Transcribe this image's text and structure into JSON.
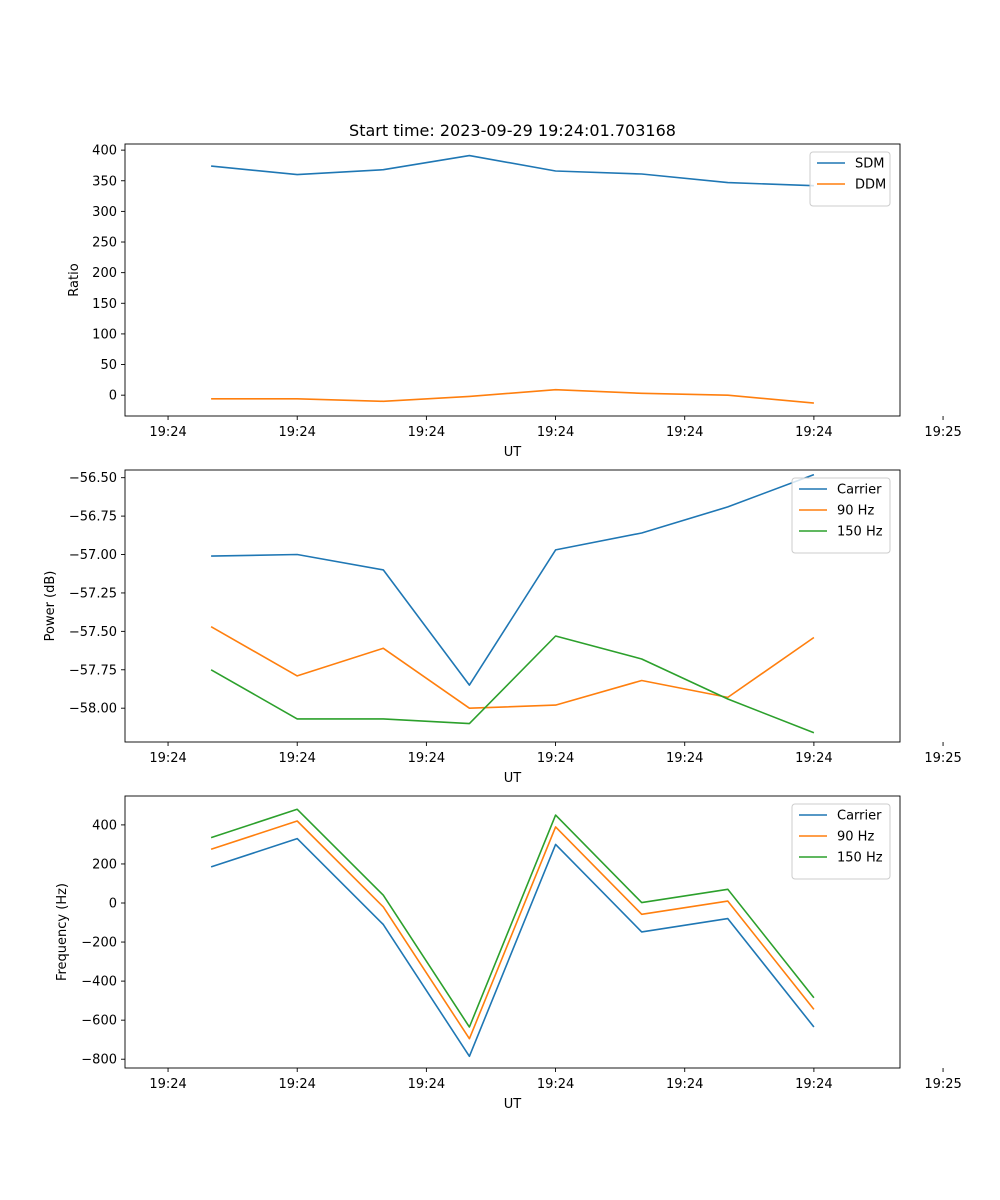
{
  "chart_data": [
    {
      "type": "line",
      "title": "Start time: 2023-09-29 19:24:01.703168",
      "xlabel": "UT",
      "ylabel": "Ratio",
      "xlim": [
        0,
        9
      ],
      "ylim": [
        -34,
        410
      ],
      "xticks": [
        0.5,
        2,
        3.5,
        5,
        6.5,
        8,
        9.5
      ],
      "xtick_labels": [
        "19:24",
        "19:24",
        "19:24",
        "19:24",
        "19:24",
        "19:24",
        "19:25"
      ],
      "yticks": [
        0,
        50,
        100,
        150,
        200,
        250,
        300,
        350,
        400
      ],
      "ytick_labels": [
        "0",
        "50",
        "100",
        "150",
        "200",
        "250",
        "300",
        "350",
        "400"
      ],
      "x": [
        1,
        2,
        3,
        4,
        5,
        6,
        7,
        8
      ],
      "legend": "top-right",
      "series": [
        {
          "name": "SDM",
          "color": "#1f77b4",
          "values": [
            374,
            360,
            368,
            391,
            366,
            361,
            347,
            342
          ]
        },
        {
          "name": "DDM",
          "color": "#ff7f0e",
          "values": [
            -6,
            -6,
            -10,
            -2,
            9,
            3,
            0,
            -13
          ]
        }
      ]
    },
    {
      "type": "line",
      "title": "",
      "xlabel": "UT",
      "ylabel": "Power (dB)",
      "xlim": [
        0,
        9
      ],
      "ylim": [
        -58.22,
        -56.45
      ],
      "xticks": [
        0.5,
        2,
        3.5,
        5,
        6.5,
        8,
        9.5
      ],
      "xtick_labels": [
        "19:24",
        "19:24",
        "19:24",
        "19:24",
        "19:24",
        "19:24",
        "19:25"
      ],
      "yticks": [
        -58.0,
        -57.75,
        -57.5,
        -57.25,
        -57.0,
        -56.75,
        -56.5
      ],
      "ytick_labels": [
        "−58.00",
        "−57.75",
        "−57.50",
        "−57.25",
        "−57.00",
        "−56.75",
        "−56.50"
      ],
      "x": [
        1,
        2,
        3,
        4,
        5,
        6,
        7,
        8
      ],
      "legend": "top-right",
      "series": [
        {
          "name": "Carrier",
          "color": "#1f77b4",
          "values": [
            -57.01,
            -57.0,
            -57.1,
            -57.85,
            -56.97,
            -56.86,
            -56.69,
            -56.48
          ]
        },
        {
          "name": "90 Hz",
          "color": "#ff7f0e",
          "values": [
            -57.47,
            -57.79,
            -57.61,
            -58.0,
            -57.98,
            -57.82,
            -57.93,
            -57.54
          ]
        },
        {
          "name": "150 Hz",
          "color": "#2ca02c",
          "values": [
            -57.75,
            -58.07,
            -58.07,
            -58.1,
            -57.53,
            -57.68,
            -57.94,
            -58.16
          ]
        }
      ]
    },
    {
      "type": "line",
      "title": "",
      "xlabel": "UT",
      "ylabel": "Frequency (Hz)",
      "xlim": [
        0,
        9
      ],
      "ylim": [
        -845,
        548
      ],
      "xticks": [
        0.5,
        2,
        3.5,
        5,
        6.5,
        8,
        9.5
      ],
      "xtick_labels": [
        "19:24",
        "19:24",
        "19:24",
        "19:24",
        "19:24",
        "19:24",
        "19:25"
      ],
      "yticks": [
        -800,
        -600,
        -400,
        -200,
        0,
        200,
        400
      ],
      "ytick_labels": [
        "−800",
        "−600",
        "−400",
        "−200",
        "0",
        "200",
        "400"
      ],
      "x": [
        1,
        2,
        3,
        4,
        5,
        6,
        7,
        8
      ],
      "legend": "top-right",
      "series": [
        {
          "name": "Carrier",
          "color": "#1f77b4",
          "values": [
            185,
            330,
            -110,
            -785,
            300,
            -148,
            -80,
            -635
          ]
        },
        {
          "name": "90 Hz",
          "color": "#ff7f0e",
          "values": [
            275,
            420,
            -20,
            -695,
            390,
            -58,
            10,
            -545
          ]
        },
        {
          "name": "150 Hz",
          "color": "#2ca02c",
          "values": [
            335,
            480,
            40,
            -635,
            450,
            2,
            70,
            -485
          ]
        }
      ]
    }
  ]
}
